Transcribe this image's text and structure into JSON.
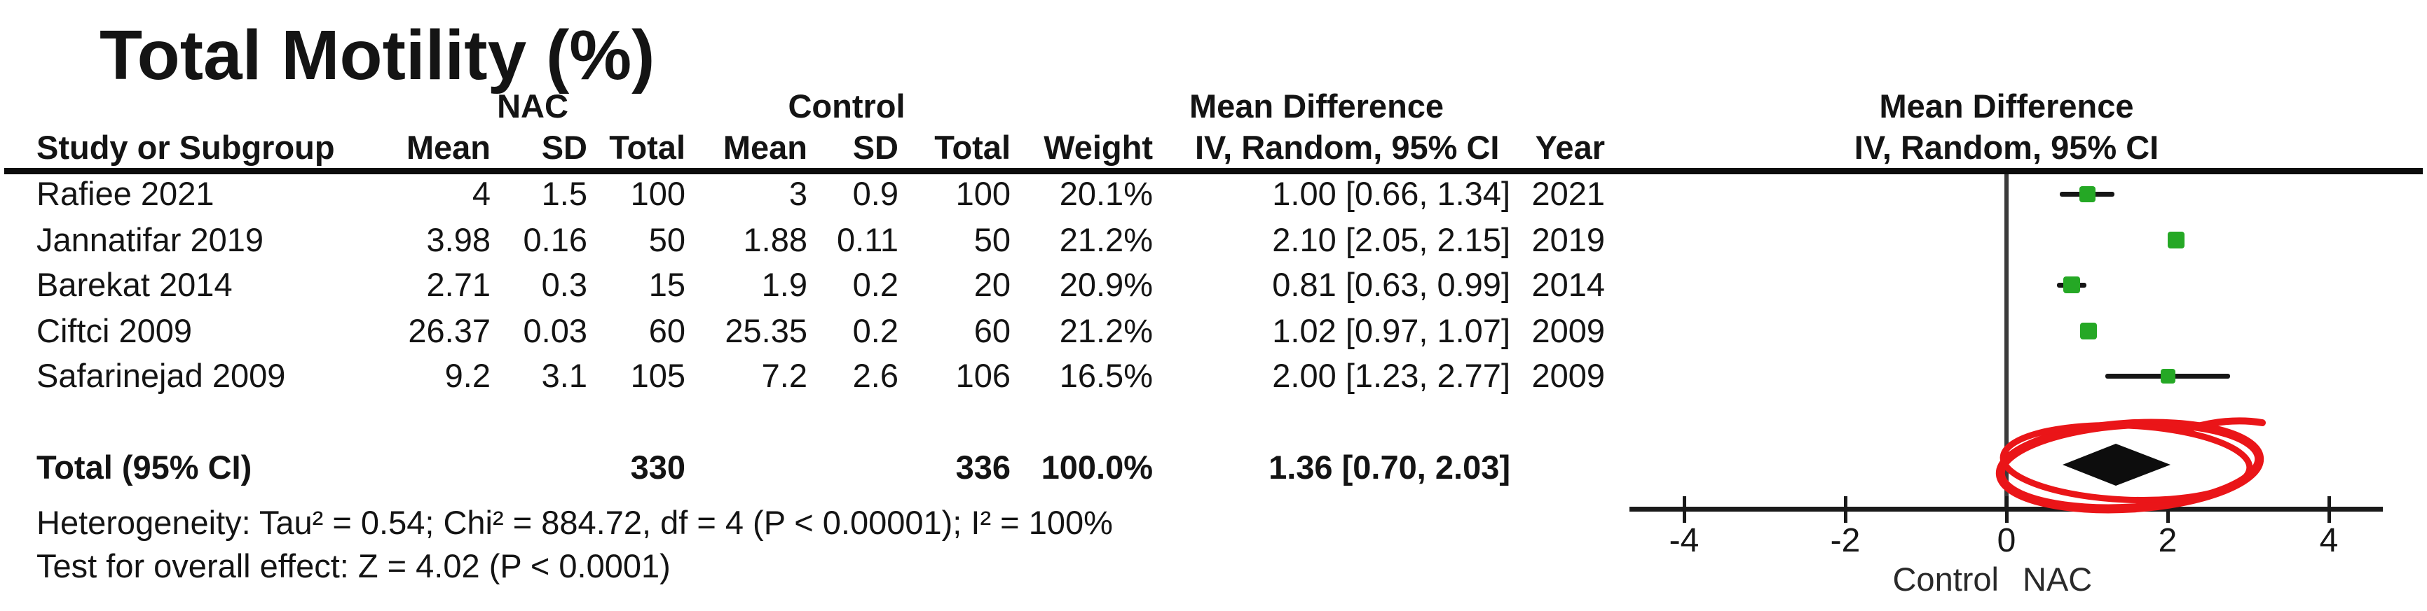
{
  "title": "Total Motility (%)",
  "header": {
    "group_nac": "NAC",
    "group_control": "Control",
    "group_md": "Mean Difference",
    "group_md_plot": "Mean Difference",
    "study": "Study or Subgroup",
    "mean1": "Mean",
    "sd1": "SD",
    "total1": "Total",
    "mean2": "Mean",
    "sd2": "SD",
    "total2": "Total",
    "weight": "Weight",
    "ivci": "IV, Random, 95% CI",
    "year": "Year",
    "ivci_plot": "IV, Random, 95% CI"
  },
  "table": {
    "rows": [
      {
        "study": "Rafiee 2021",
        "nac_mean": "4",
        "nac_sd": "1.5",
        "nac_total": "100",
        "ctl_mean": "3",
        "ctl_sd": "0.9",
        "ctl_total": "100",
        "weight": "20.1%",
        "md_ci": "1.00 [0.66, 1.34]",
        "year": "2021"
      },
      {
        "study": "Jannatifar 2019",
        "nac_mean": "3.98",
        "nac_sd": "0.16",
        "nac_total": "50",
        "ctl_mean": "1.88",
        "ctl_sd": "0.11",
        "ctl_total": "50",
        "weight": "21.2%",
        "md_ci": "2.10 [2.05, 2.15]",
        "year": "2019"
      },
      {
        "study": "Barekat 2014",
        "nac_mean": "2.71",
        "nac_sd": "0.3",
        "nac_total": "15",
        "ctl_mean": "1.9",
        "ctl_sd": "0.2",
        "ctl_total": "20",
        "weight": "20.9%",
        "md_ci": "0.81 [0.63, 0.99]",
        "year": "2014"
      },
      {
        "study": "Ciftci 2009",
        "nac_mean": "26.37",
        "nac_sd": "0.03",
        "nac_total": "60",
        "ctl_mean": "25.35",
        "ctl_sd": "0.2",
        "ctl_total": "60",
        "weight": "21.2%",
        "md_ci": "1.02 [0.97, 1.07]",
        "year": "2009"
      },
      {
        "study": "Safarinejad 2009",
        "nac_mean": "9.2",
        "nac_sd": "3.1",
        "nac_total": "105",
        "ctl_mean": "7.2",
        "ctl_sd": "2.6",
        "ctl_total": "106",
        "weight": "16.5%",
        "md_ci": "2.00 [1.23, 2.77]",
        "year": "2009"
      }
    ],
    "totals": {
      "label": "Total (95% CI)",
      "nac_total": "330",
      "ctl_total": "336",
      "weight": "100.0%",
      "md_ci": "1.36 [0.70, 2.03]"
    }
  },
  "footnotes": {
    "heterogeneity": "Heterogeneity: Tau² = 0.54; Chi² = 884.72, df = 4 (P < 0.00001); I² = 100%",
    "overall_effect": "Test for overall effect: Z = 4.02 (P < 0.0001)"
  },
  "axis": {
    "tick_labels": [
      "-4",
      "-2",
      "0",
      "2",
      "4"
    ],
    "left_label": "Control",
    "right_label": "NAC"
  },
  "colors": {
    "square_green": "#25a825",
    "ci_black": "#161616",
    "diamond_black": "#0d0d0d",
    "annotation_red": "#ea1518"
  },
  "chart_data": {
    "type": "forest",
    "title": "Total Motility (%)",
    "measure": "Mean Difference",
    "method": "IV, Random, 95% CI",
    "xlim": [
      -4,
      4
    ],
    "xticks": [
      -4,
      -2,
      0,
      2,
      4
    ],
    "axis_left_label": "Control",
    "axis_right_label": "NAC",
    "studies": [
      {
        "name": "Rafiee 2021",
        "md": 1.0,
        "lo": 0.66,
        "hi": 1.34,
        "weight": 20.1,
        "year": 2021
      },
      {
        "name": "Jannatifar 2019",
        "md": 2.1,
        "lo": 2.05,
        "hi": 2.15,
        "weight": 21.2,
        "year": 2019
      },
      {
        "name": "Barekat 2014",
        "md": 0.81,
        "lo": 0.63,
        "hi": 0.99,
        "weight": 20.9,
        "year": 2014
      },
      {
        "name": "Ciftci 2009",
        "md": 1.02,
        "lo": 0.97,
        "hi": 1.07,
        "weight": 21.2,
        "year": 2009
      },
      {
        "name": "Safarinejad 2009",
        "md": 2.0,
        "lo": 1.23,
        "hi": 2.77,
        "weight": 16.5,
        "year": 2009
      }
    ],
    "total": {
      "label": "Total (95% CI)",
      "md": 1.36,
      "lo": 0.7,
      "hi": 2.03,
      "weight": 100.0
    },
    "totals_n": {
      "nac": 330,
      "control": 336
    },
    "heterogeneity": "Tau² = 0.54; Chi² = 884.72, df = 4 (P < 0.00001); I² = 100%",
    "overall_effect": "Z = 4.02 (P < 0.0001)",
    "annotation": "hand-drawn red ellipse circling the total diamond"
  }
}
